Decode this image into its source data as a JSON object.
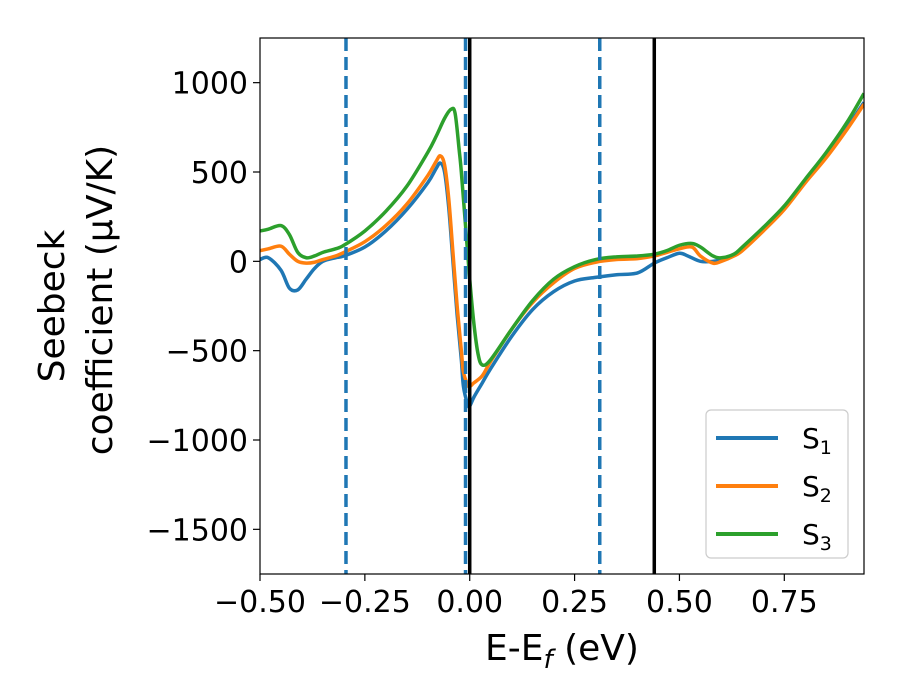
{
  "chart_data": {
    "type": "line",
    "title": "",
    "xlabel": {
      "main": "E-E",
      "sub": "f",
      "unit": " (eV)"
    },
    "ylabel": {
      "line1": "Seebeck",
      "line2": "coefficient  (μV/K)"
    },
    "xlim": [
      -0.5,
      0.94
    ],
    "ylim": [
      -1750,
      1250
    ],
    "xticks": [
      -0.5,
      -0.25,
      0.0,
      0.25,
      0.5,
      0.75
    ],
    "xtick_labels": [
      "−0.50",
      "−0.25",
      "0.00",
      "0.25",
      "0.50",
      "0.75"
    ],
    "yticks": [
      -1500,
      -1000,
      -500,
      0,
      500,
      1000
    ],
    "ytick_labels": [
      "−1500",
      "−1000",
      "−500",
      "0",
      "500",
      "1000"
    ],
    "grid": false,
    "legend_position": "bottom-right",
    "colors": {
      "s1": "#1f77b4",
      "s2": "#ff7f0e",
      "s3": "#2ca02c",
      "solid_vline": "#000000",
      "dashed_vline": "#1f77b4"
    },
    "vlines_solid": [
      0.0,
      0.44
    ],
    "vlines_dashed": [
      -0.295,
      -0.01,
      0.31
    ],
    "series": [
      {
        "key": "s1",
        "name": "S",
        "sub": "1",
        "color": "#1f77b4",
        "points": [
          [
            -0.5,
            10
          ],
          [
            -0.48,
            20
          ],
          [
            -0.45,
            -50
          ],
          [
            -0.43,
            -150
          ],
          [
            -0.41,
            -160
          ],
          [
            -0.39,
            -100
          ],
          [
            -0.37,
            -40
          ],
          [
            -0.35,
            0
          ],
          [
            -0.32,
            20
          ],
          [
            -0.3,
            30
          ],
          [
            -0.25,
            80
          ],
          [
            -0.2,
            170
          ],
          [
            -0.15,
            290
          ],
          [
            -0.1,
            440
          ],
          [
            -0.08,
            520
          ],
          [
            -0.07,
            550
          ],
          [
            -0.06,
            500
          ],
          [
            -0.05,
            300
          ],
          [
            -0.04,
            0
          ],
          [
            -0.03,
            -300
          ],
          [
            -0.02,
            -550
          ],
          [
            -0.015,
            -700
          ],
          [
            -0.005,
            -800
          ],
          [
            0.0,
            -810
          ],
          [
            0.01,
            -760
          ],
          [
            0.03,
            -680
          ],
          [
            0.05,
            -600
          ],
          [
            0.1,
            -420
          ],
          [
            0.15,
            -270
          ],
          [
            0.2,
            -170
          ],
          [
            0.25,
            -110
          ],
          [
            0.3,
            -90
          ],
          [
            0.35,
            -75
          ],
          [
            0.4,
            -65
          ],
          [
            0.44,
            -10
          ],
          [
            0.47,
            20
          ],
          [
            0.5,
            45
          ],
          [
            0.52,
            30
          ],
          [
            0.55,
            0
          ],
          [
            0.58,
            0
          ],
          [
            0.6,
            10
          ],
          [
            0.63,
            40
          ],
          [
            0.65,
            70
          ],
          [
            0.7,
            180
          ],
          [
            0.75,
            300
          ],
          [
            0.8,
            450
          ],
          [
            0.85,
            590
          ],
          [
            0.9,
            750
          ],
          [
            0.94,
            890
          ]
        ]
      },
      {
        "key": "s2",
        "name": "S",
        "sub": "2",
        "color": "#ff7f0e",
        "points": [
          [
            -0.5,
            60
          ],
          [
            -0.48,
            70
          ],
          [
            -0.45,
            85
          ],
          [
            -0.43,
            40
          ],
          [
            -0.41,
            0
          ],
          [
            -0.39,
            -10
          ],
          [
            -0.37,
            -5
          ],
          [
            -0.35,
            10
          ],
          [
            -0.32,
            30
          ],
          [
            -0.3,
            50
          ],
          [
            -0.25,
            110
          ],
          [
            -0.2,
            200
          ],
          [
            -0.15,
            320
          ],
          [
            -0.1,
            480
          ],
          [
            -0.08,
            560
          ],
          [
            -0.07,
            590
          ],
          [
            -0.06,
            540
          ],
          [
            -0.05,
            350
          ],
          [
            -0.04,
            50
          ],
          [
            -0.03,
            -250
          ],
          [
            -0.02,
            -500
          ],
          [
            -0.015,
            -620
          ],
          [
            -0.005,
            -690
          ],
          [
            0.0,
            -700
          ],
          [
            0.01,
            -680
          ],
          [
            0.03,
            -640
          ],
          [
            0.05,
            -560
          ],
          [
            0.1,
            -380
          ],
          [
            0.15,
            -230
          ],
          [
            0.2,
            -120
          ],
          [
            0.25,
            -40
          ],
          [
            0.3,
            -5
          ],
          [
            0.35,
            10
          ],
          [
            0.4,
            15
          ],
          [
            0.44,
            30
          ],
          [
            0.47,
            50
          ],
          [
            0.5,
            70
          ],
          [
            0.53,
            80
          ],
          [
            0.55,
            30
          ],
          [
            0.58,
            -10
          ],
          [
            0.6,
            0
          ],
          [
            0.63,
            30
          ],
          [
            0.65,
            60
          ],
          [
            0.7,
            170
          ],
          [
            0.75,
            290
          ],
          [
            0.8,
            440
          ],
          [
            0.85,
            580
          ],
          [
            0.9,
            740
          ],
          [
            0.94,
            880
          ]
        ]
      },
      {
        "key": "s3",
        "name": "S",
        "sub": "3",
        "color": "#2ca02c",
        "points": [
          [
            -0.5,
            170
          ],
          [
            -0.48,
            180
          ],
          [
            -0.45,
            200
          ],
          [
            -0.43,
            150
          ],
          [
            -0.41,
            50
          ],
          [
            -0.39,
            20
          ],
          [
            -0.37,
            30
          ],
          [
            -0.35,
            50
          ],
          [
            -0.32,
            70
          ],
          [
            -0.3,
            90
          ],
          [
            -0.25,
            170
          ],
          [
            -0.2,
            280
          ],
          [
            -0.15,
            420
          ],
          [
            -0.1,
            610
          ],
          [
            -0.08,
            700
          ],
          [
            -0.06,
            800
          ],
          [
            -0.045,
            850
          ],
          [
            -0.035,
            830
          ],
          [
            -0.025,
            620
          ],
          [
            -0.02,
            500
          ],
          [
            -0.01,
            200
          ],
          [
            0.0,
            -100
          ],
          [
            0.01,
            -350
          ],
          [
            0.02,
            -520
          ],
          [
            0.03,
            -580
          ],
          [
            0.05,
            -550
          ],
          [
            0.1,
            -380
          ],
          [
            0.15,
            -220
          ],
          [
            0.2,
            -100
          ],
          [
            0.25,
            -30
          ],
          [
            0.3,
            10
          ],
          [
            0.35,
            25
          ],
          [
            0.4,
            30
          ],
          [
            0.44,
            40
          ],
          [
            0.47,
            60
          ],
          [
            0.5,
            90
          ],
          [
            0.53,
            100
          ],
          [
            0.55,
            80
          ],
          [
            0.58,
            30
          ],
          [
            0.6,
            20
          ],
          [
            0.63,
            40
          ],
          [
            0.65,
            80
          ],
          [
            0.7,
            190
          ],
          [
            0.75,
            310
          ],
          [
            0.8,
            460
          ],
          [
            0.85,
            610
          ],
          [
            0.9,
            780
          ],
          [
            0.94,
            940
          ]
        ]
      }
    ]
  }
}
